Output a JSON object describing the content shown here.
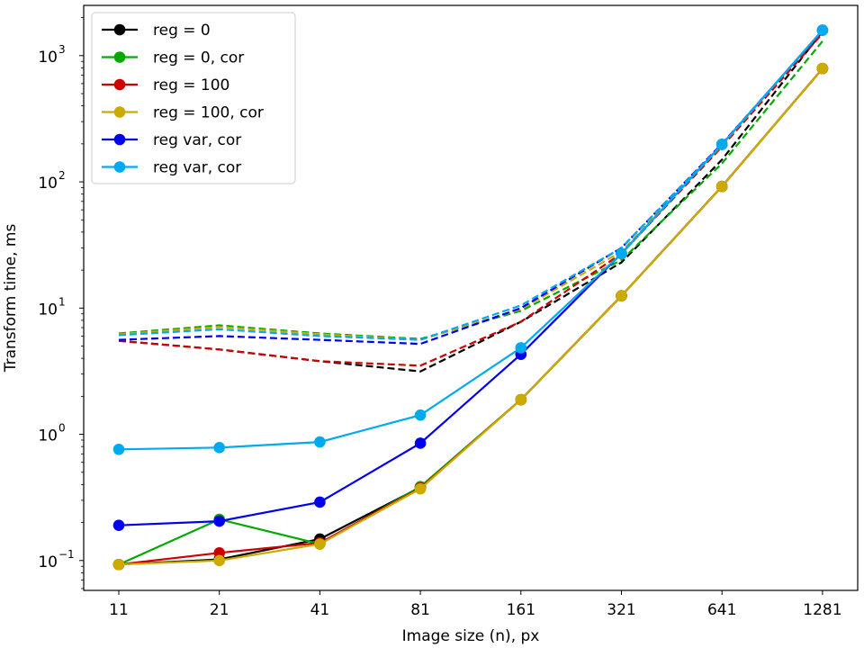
{
  "chart_data": {
    "type": "line",
    "title": "",
    "xlabel": "Image size (n), px",
    "ylabel": "Transform time, ms",
    "xscale": "categorical",
    "yscale": "log",
    "ylim": [
      0.058,
      2500
    ],
    "categories": [
      "11",
      "21",
      "41",
      "81",
      "161",
      "321",
      "641",
      "1281"
    ],
    "y_ticks": [
      {
        "value": 0.1,
        "base": "10",
        "exp": "−1"
      },
      {
        "value": 1,
        "base": "10",
        "exp": "0"
      },
      {
        "value": 10,
        "base": "10",
        "exp": "1"
      },
      {
        "value": 100,
        "base": "10",
        "exp": "2"
      },
      {
        "value": 1000,
        "base": "10",
        "exp": "3"
      }
    ],
    "legend_position": "top-left",
    "series": [
      {
        "name": "reg = 0",
        "color": "#000000",
        "values": [
          0.093,
          0.102,
          0.148,
          0.38,
          1.88,
          12.5,
          92,
          790
        ],
        "dashed_values": [
          5.5,
          4.7,
          3.8,
          3.15,
          7.8,
          23,
          150,
          1550
        ]
      },
      {
        "name": "reg = 0, cor",
        "color": "#00aa00",
        "values": [
          0.093,
          0.212,
          0.135,
          0.385,
          1.88,
          12.5,
          92,
          790
        ],
        "dashed_values": [
          6.3,
          7.3,
          6.3,
          5.7,
          9.5,
          24,
          140,
          1300
        ]
      },
      {
        "name": "reg = 100",
        "color": "#cc0000",
        "values": [
          0.093,
          0.115,
          0.138,
          0.375,
          1.88,
          12.5,
          92,
          790
        ],
        "dashed_values": [
          5.5,
          4.7,
          3.8,
          3.5,
          7.8,
          27,
          190,
          1500
        ]
      },
      {
        "name": "reg = 100, cor",
        "color": "#ccaa00",
        "values": [
          0.093,
          0.1,
          0.135,
          0.37,
          1.88,
          12.5,
          92,
          790
        ],
        "dashed_values": [
          6.2,
          7.1,
          6.2,
          5.6,
          9.8,
          28,
          195,
          1580
        ]
      },
      {
        "name": "reg var, cor",
        "color": "#0000ee",
        "values": [
          0.19,
          0.205,
          0.29,
          0.85,
          4.3,
          27,
          198,
          1590
        ],
        "dashed_values": [
          5.6,
          6.0,
          5.6,
          5.2,
          10,
          30,
          200,
          1570
        ]
      },
      {
        "name": "reg var, cor",
        "color": "#00aaee",
        "values": [
          0.76,
          0.785,
          0.87,
          1.42,
          4.85,
          27,
          198,
          1590
        ],
        "dashed_values": [
          6.1,
          6.8,
          6.0,
          5.6,
          10.5,
          30,
          198,
          1580
        ]
      }
    ]
  }
}
